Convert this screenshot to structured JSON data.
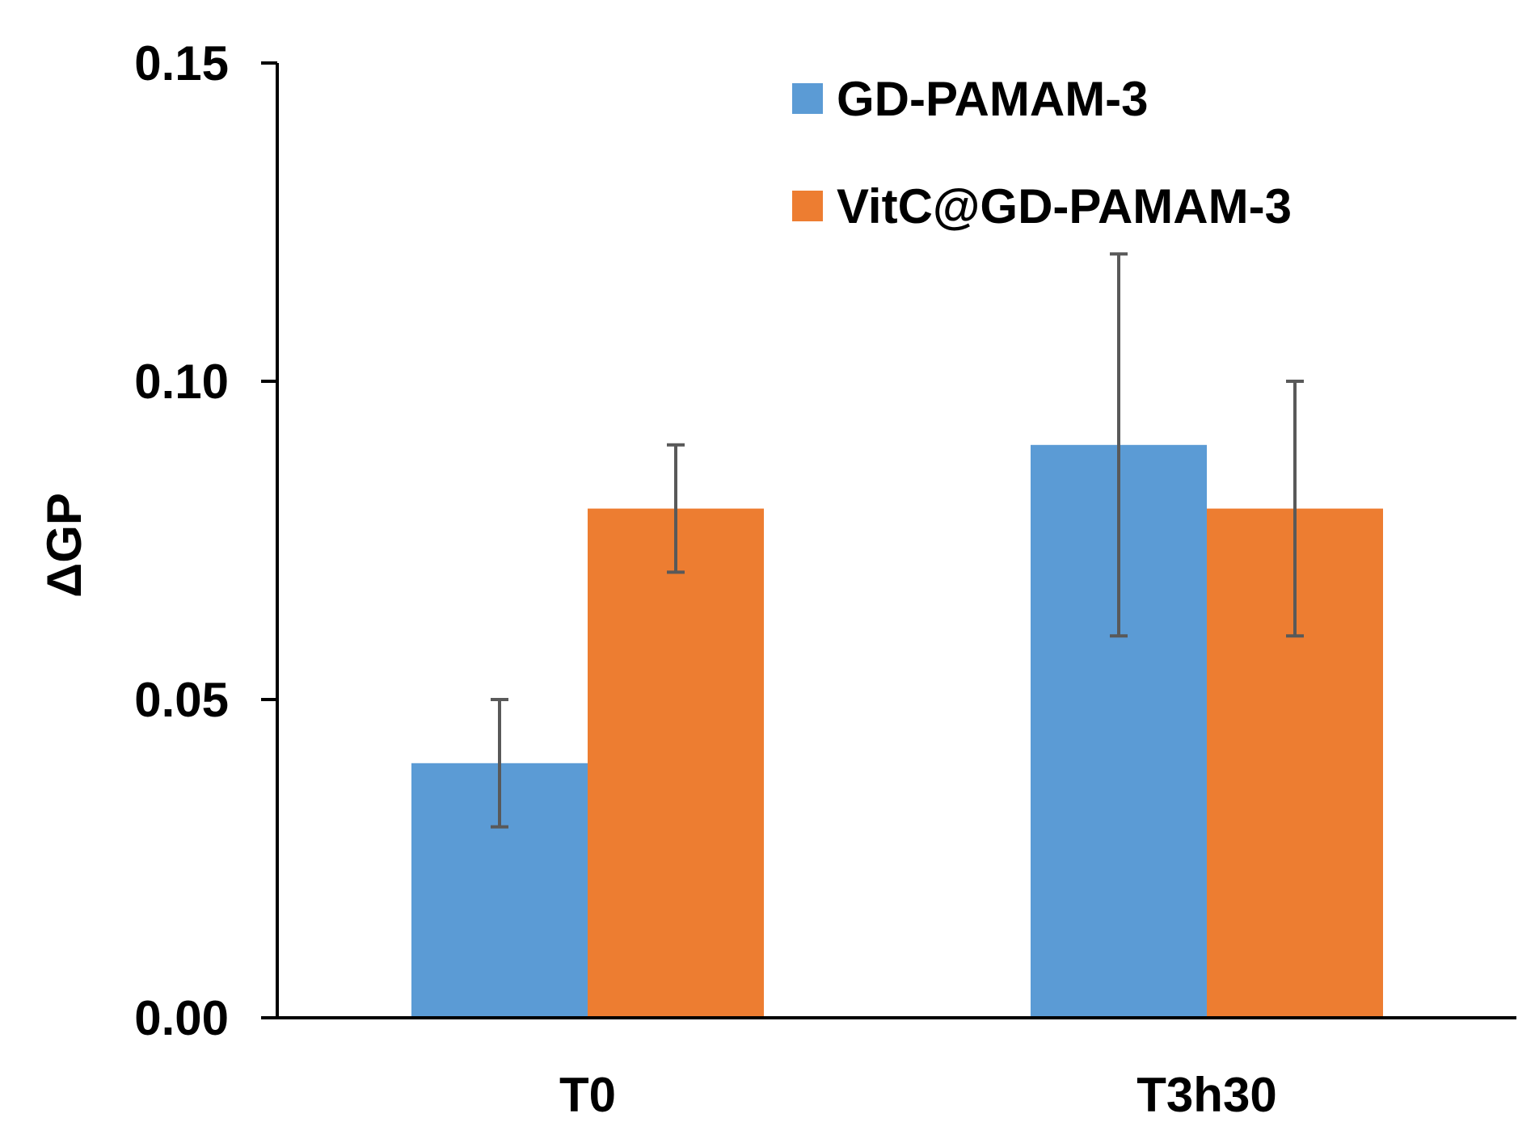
{
  "chart_data": {
    "type": "bar",
    "title": "",
    "xlabel": "",
    "ylabel": "ΔGP",
    "ylim": [
      0,
      0.15
    ],
    "yticks": [
      0,
      0.05,
      0.1,
      0.15
    ],
    "ytick_labels": [
      "0.00",
      "0.05",
      "0.10",
      "0.15"
    ],
    "categories": [
      "T0",
      "T3h30"
    ],
    "series": [
      {
        "name": "GD-PAMAM-3",
        "color": "#5B9BD5",
        "values": [
          0.04,
          0.09
        ],
        "errors": [
          0.01,
          0.03
        ]
      },
      {
        "name": "VitC@GD-PAMAM-3",
        "color": "#ED7D31",
        "values": [
          0.08,
          0.08
        ],
        "errors": [
          0.01,
          0.02
        ]
      }
    ],
    "error_bar_color": "#595959",
    "grid": false,
    "legend_position": "top-right"
  }
}
